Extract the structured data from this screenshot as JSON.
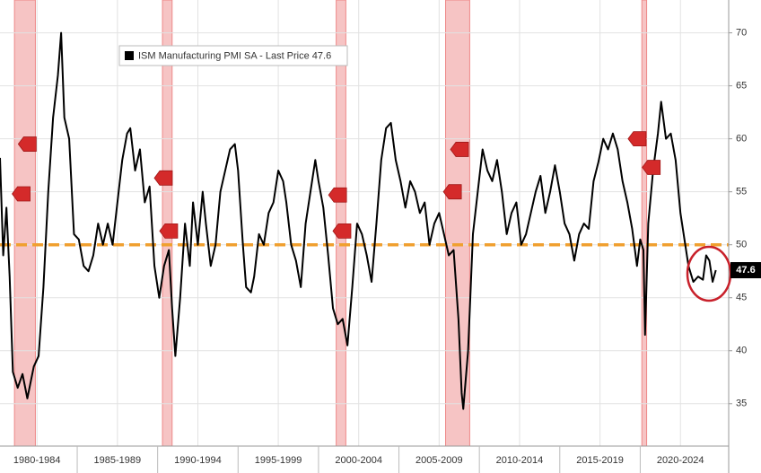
{
  "chart_data": {
    "type": "line",
    "x": [
      1980.2,
      1980.4,
      1980.6,
      1980.8,
      1981.0,
      1981.3,
      1981.6,
      1981.9,
      1982.3,
      1982.6,
      1982.9,
      1983.2,
      1983.5,
      1983.8,
      1984.0,
      1984.2,
      1984.5,
      1984.8,
      1985.1,
      1985.4,
      1985.7,
      1986.0,
      1986.3,
      1986.6,
      1986.9,
      1987.2,
      1987.5,
      1987.8,
      1988.1,
      1988.3,
      1988.6,
      1988.9,
      1989.2,
      1989.5,
      1989.8,
      1990.1,
      1990.4,
      1990.7,
      1990.9,
      1991.1,
      1991.4,
      1991.7,
      1992.0,
      1992.2,
      1992.5,
      1992.8,
      1993.0,
      1993.3,
      1993.6,
      1993.9,
      1994.2,
      1994.5,
      1994.8,
      1995.0,
      1995.3,
      1995.5,
      1995.8,
      1996.0,
      1996.3,
      1996.6,
      1996.9,
      1997.2,
      1997.5,
      1997.8,
      1998.0,
      1998.3,
      1998.6,
      1998.9,
      1999.2,
      1999.5,
      1999.8,
      2000.0,
      2000.3,
      2000.6,
      2000.9,
      2001.2,
      2001.5,
      2001.8,
      2002.1,
      2002.4,
      2002.7,
      2003.0,
      2003.3,
      2003.6,
      2003.9,
      2004.2,
      2004.5,
      2004.8,
      2005.1,
      2005.4,
      2005.7,
      2006.0,
      2006.3,
      2006.6,
      2006.9,
      2007.2,
      2007.5,
      2007.8,
      2008.1,
      2008.4,
      2008.7,
      2008.9,
      2009.0,
      2009.3,
      2009.6,
      2009.9,
      2010.2,
      2010.5,
      2010.8,
      2011.1,
      2011.4,
      2011.7,
      2012.0,
      2012.3,
      2012.6,
      2012.9,
      2013.2,
      2013.5,
      2013.8,
      2014.1,
      2014.4,
      2014.7,
      2015.0,
      2015.3,
      2015.6,
      2015.9,
      2016.2,
      2016.5,
      2016.8,
      2017.1,
      2017.4,
      2017.7,
      2018.0,
      2018.3,
      2018.6,
      2018.9,
      2019.2,
      2019.5,
      2019.8,
      2020.0,
      2020.2,
      2020.3,
      2020.5,
      2020.8,
      2021.1,
      2021.3,
      2021.6,
      2021.9,
      2022.2,
      2022.5,
      2022.8,
      2023.0,
      2023.3,
      2023.6,
      2023.9,
      2024.1,
      2024.3,
      2024.5,
      2024.7
    ],
    "series": [
      {
        "name": "ISM Manufacturing PMI SA - Last Price 47.6",
        "color": "#000000",
        "values": [
          58.2,
          49,
          53.5,
          47,
          38,
          36.5,
          37.8,
          35.5,
          38.5,
          39.5,
          46,
          55,
          62,
          66,
          70,
          62,
          60,
          51,
          50.5,
          48,
          47.5,
          49,
          52,
          50,
          52,
          50,
          54,
          58,
          60.5,
          61,
          57,
          59,
          54,
          55.5,
          48,
          45,
          48,
          49.5,
          44,
          39.5,
          45,
          52,
          48,
          54,
          50,
          55,
          52,
          48,
          50,
          55,
          57,
          59,
          59.5,
          57,
          50,
          46,
          45.5,
          47,
          51,
          50,
          53,
          54,
          57,
          56,
          54,
          50,
          48.5,
          46,
          52,
          55,
          58,
          56,
          53.5,
          49,
          44,
          42.5,
          43,
          40.5,
          46,
          52,
          51,
          49,
          46.5,
          52,
          58,
          61,
          61.5,
          58,
          56,
          53.5,
          56,
          55,
          53,
          54,
          50,
          52,
          53,
          51,
          49,
          49.5,
          43,
          36,
          34.5,
          40,
          51,
          55,
          59,
          57,
          56,
          58,
          55,
          51,
          53,
          54,
          50,
          51,
          53,
          55,
          56.5,
          53,
          55,
          57.5,
          55,
          52,
          51,
          48.5,
          51,
          52,
          51.5,
          56,
          57.8,
          60,
          59,
          60.5,
          59,
          56,
          54,
          51.5,
          48,
          50.5,
          49.5,
          41.5,
          52,
          57,
          60.5,
          63.5,
          60,
          60.5,
          58,
          53,
          50,
          48,
          46.5,
          47,
          46.7,
          49,
          48.5,
          46.5,
          47.6
        ]
      }
    ],
    "xlim": [
      1980.2,
      2025.5
    ],
    "xticks": [
      {
        "value": 1982.5,
        "label": "1980-1984"
      },
      {
        "value": 1987.5,
        "label": "1985-1989"
      },
      {
        "value": 1992.5,
        "label": "1990-1994"
      },
      {
        "value": 1997.5,
        "label": "1995-1999"
      },
      {
        "value": 2002.5,
        "label": "2000-2004"
      },
      {
        "value": 2007.5,
        "label": "2005-2009"
      },
      {
        "value": 2012.5,
        "label": "2010-2014"
      },
      {
        "value": 2017.5,
        "label": "2015-2019"
      },
      {
        "value": 2022.5,
        "label": "2020-2024"
      }
    ],
    "ylim": [
      31,
      73.1
    ],
    "yticks": [
      35,
      40,
      45,
      50,
      55,
      60,
      65,
      70
    ],
    "grid": true,
    "reference_line": {
      "value": 50,
      "color": "#f0a030"
    },
    "shaded_bands": {
      "color": "#f6c4c4",
      "ranges": [
        [
          1981.1,
          1982.4
        ],
        [
          1990.3,
          1990.9
        ],
        [
          2001.1,
          2001.7
        ],
        [
          2007.9,
          2009.4
        ],
        [
          2020.1,
          2020.4
        ]
      ]
    },
    "event_markers": {
      "color": "#d42a2a",
      "x": [
        1981.95,
        1981.57,
        1990.41,
        1990.74,
        2001.24,
        2001.51,
        2008.82,
        2008.38,
        2019.86,
        2020.74
      ],
      "y": [
        59.5,
        54.8,
        56.3,
        51.3,
        54.7,
        51.3,
        59,
        55,
        60,
        57.3
      ]
    }
  }
}
